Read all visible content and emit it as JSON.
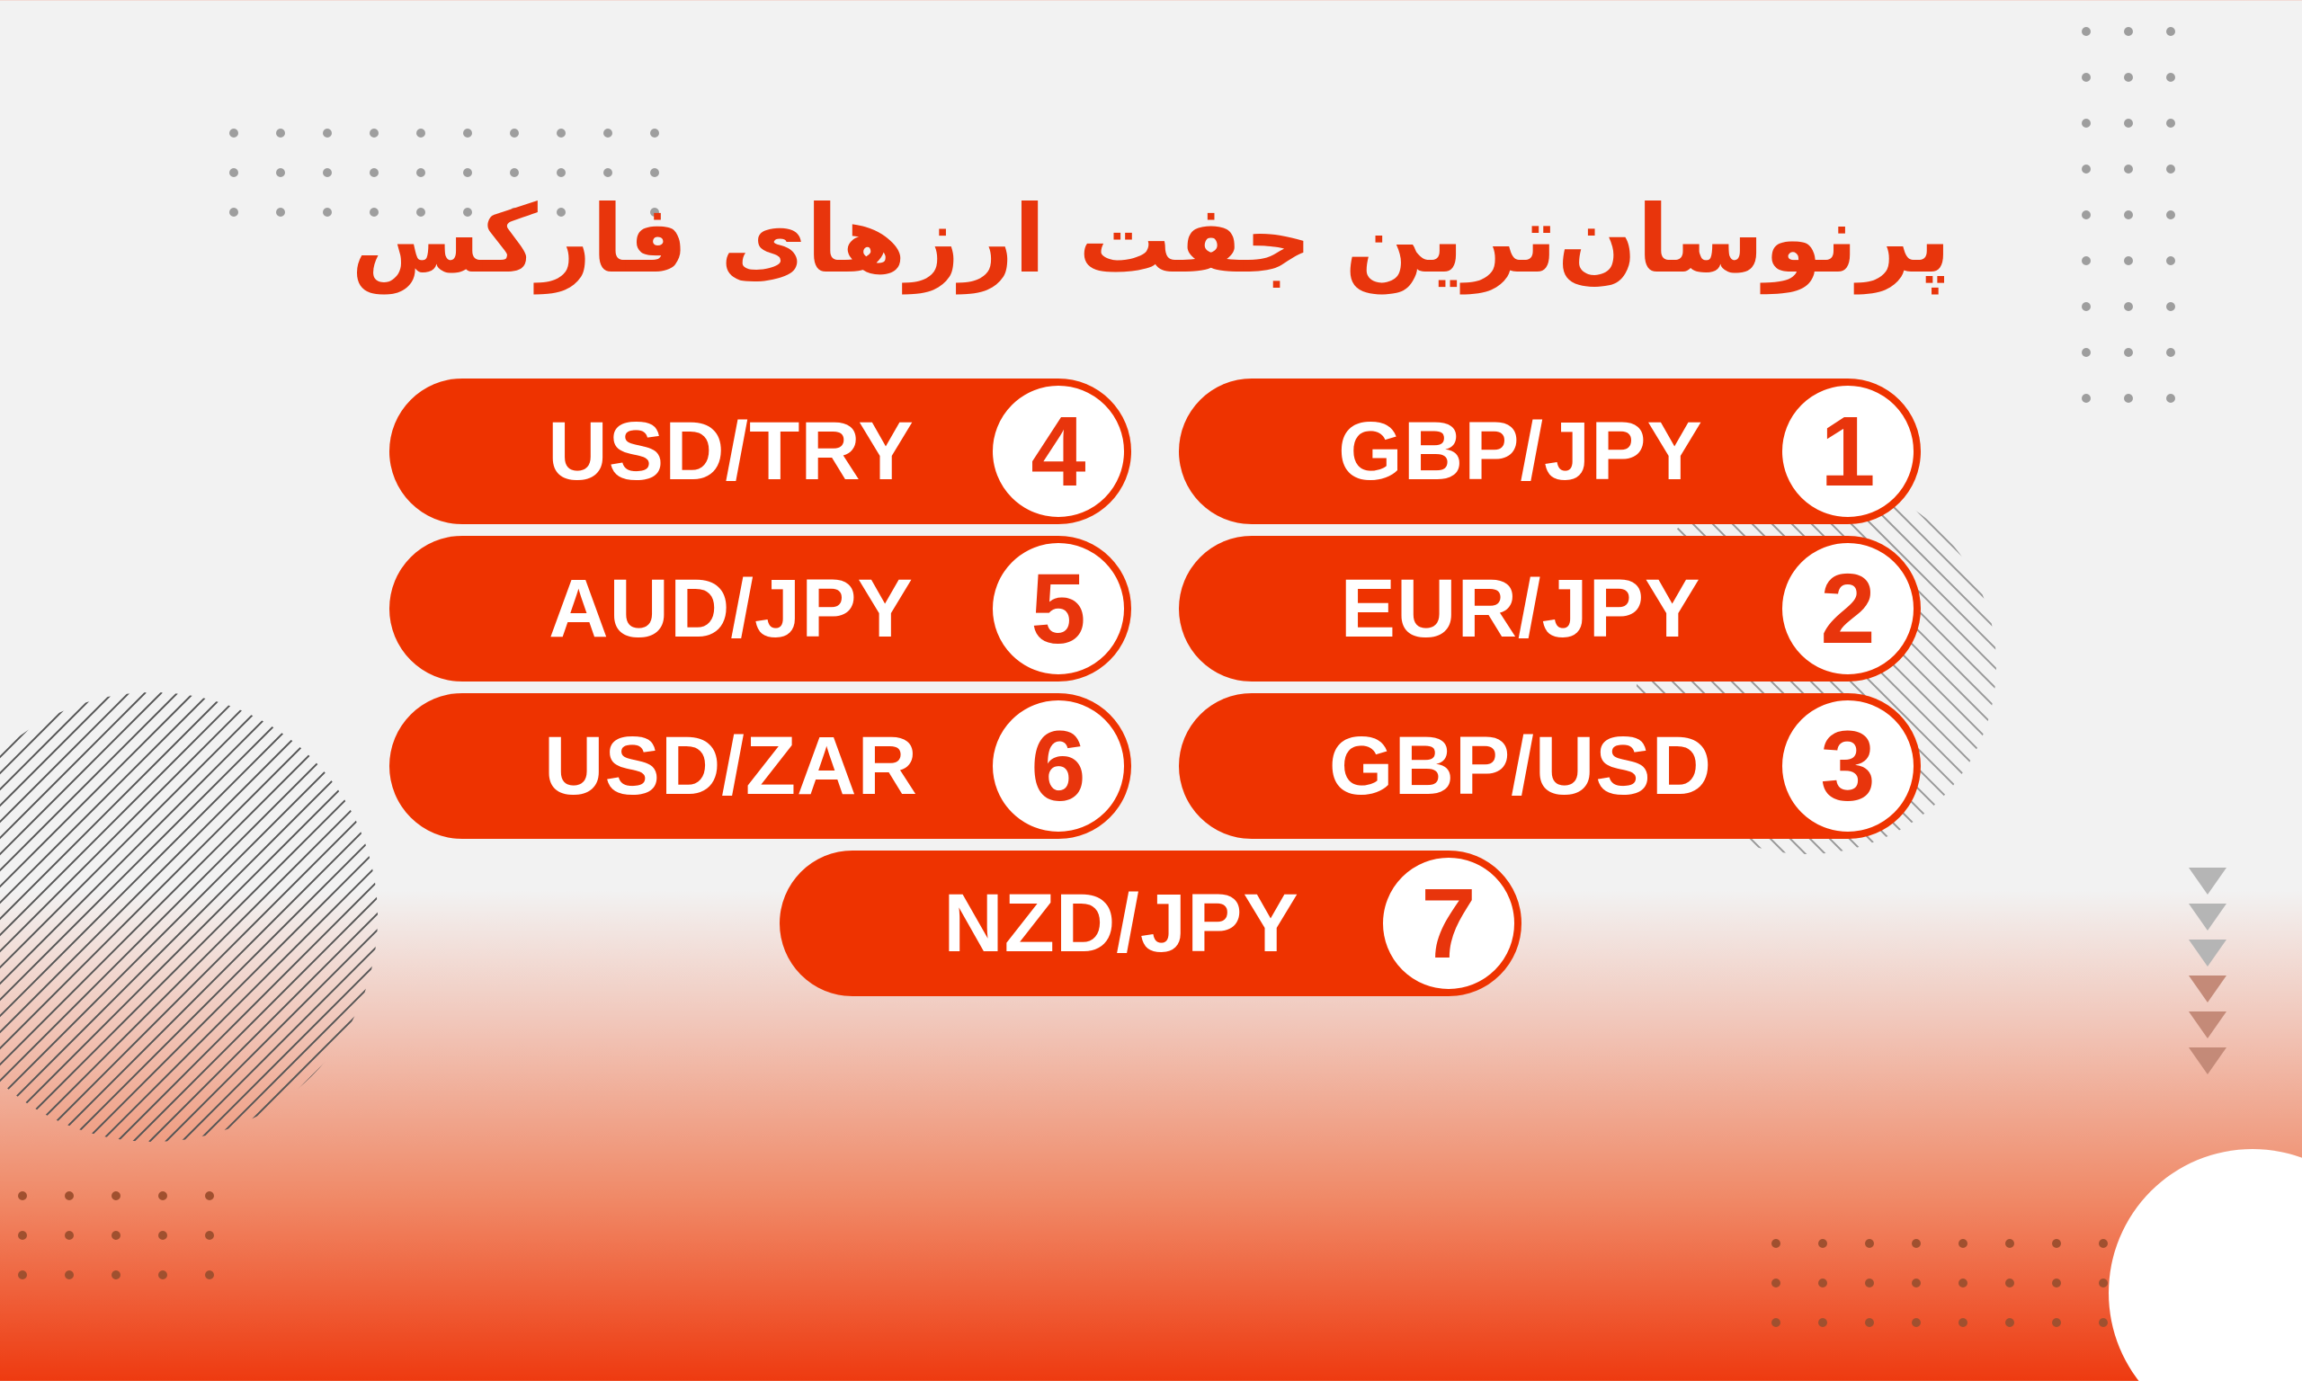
{
  "title": "پرنوسان‌ترین جفت ارزهای فارکس",
  "colors": {
    "accent": "#ee3300",
    "background": "#f2f2f2",
    "text_on_accent": "#ffffff"
  },
  "pairs": [
    {
      "rank": "1",
      "label": "GBP/JPY"
    },
    {
      "rank": "2",
      "label": "EUR/JPY"
    },
    {
      "rank": "3",
      "label": "GBP/USD"
    },
    {
      "rank": "4",
      "label": "USD/TRY"
    },
    {
      "rank": "5",
      "label": "AUD/JPY"
    },
    {
      "rank": "6",
      "label": "USD/ZAR"
    },
    {
      "rank": "7",
      "label": "NZD/JPY"
    }
  ]
}
